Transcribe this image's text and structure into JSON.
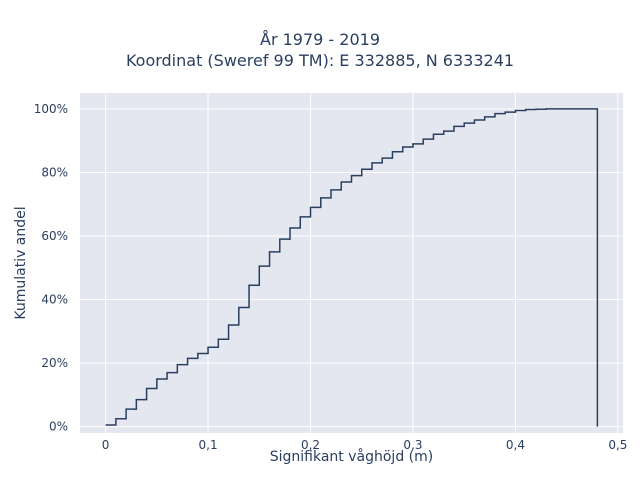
{
  "chart_data": {
    "type": "line",
    "title_line1": "År 1979 - 2019",
    "title_line2": "Koordinat (Sweref 99 TM): E 332885, N 6333241",
    "xlabel": "Signifikant våghöjd (m)",
    "ylabel": "Kumulativ andel",
    "xlim": [
      -0.025,
      0.505
    ],
    "ylim": [
      -0.02,
      1.05
    ],
    "x_ticks": [
      0,
      0.1,
      0.2,
      0.3,
      0.4,
      0.5
    ],
    "x_tick_labels": [
      "0",
      "0,1",
      "0,2",
      "0,3",
      "0,4",
      "0,5"
    ],
    "y_ticks": [
      0,
      0.2,
      0.4,
      0.6,
      0.8,
      1.0
    ],
    "y_tick_labels": [
      "0%",
      "20%",
      "40%",
      "60%",
      "80%",
      "100%"
    ],
    "grid": true,
    "background_color": "#e5e7f0",
    "line_color": "#2a3f5f",
    "series": [
      {
        "x": [
          0,
          0.01,
          0.02,
          0.03,
          0.04,
          0.05,
          0.06,
          0.07,
          0.08,
          0.09,
          0.1,
          0.11,
          0.12,
          0.13,
          0.14,
          0.15,
          0.16,
          0.17,
          0.18,
          0.19,
          0.2,
          0.21,
          0.22,
          0.23,
          0.24,
          0.25,
          0.26,
          0.27,
          0.28,
          0.29,
          0.3,
          0.31,
          0.32,
          0.33,
          0.34,
          0.35,
          0.36,
          0.37,
          0.38,
          0.39,
          0.4,
          0.41,
          0.42,
          0.43,
          0.44,
          0.45,
          0.46,
          0.47,
          0.48
        ],
        "y": [
          0.005,
          0.025,
          0.055,
          0.085,
          0.12,
          0.15,
          0.17,
          0.195,
          0.215,
          0.23,
          0.25,
          0.275,
          0.32,
          0.375,
          0.445,
          0.505,
          0.55,
          0.59,
          0.625,
          0.66,
          0.69,
          0.72,
          0.745,
          0.77,
          0.79,
          0.81,
          0.83,
          0.845,
          0.865,
          0.88,
          0.89,
          0.905,
          0.92,
          0.93,
          0.945,
          0.955,
          0.965,
          0.975,
          0.985,
          0.99,
          0.995,
          0.998,
          0.999,
          1.0,
          1.0,
          1.0,
          1.0,
          1.0,
          0
        ]
      }
    ]
  }
}
